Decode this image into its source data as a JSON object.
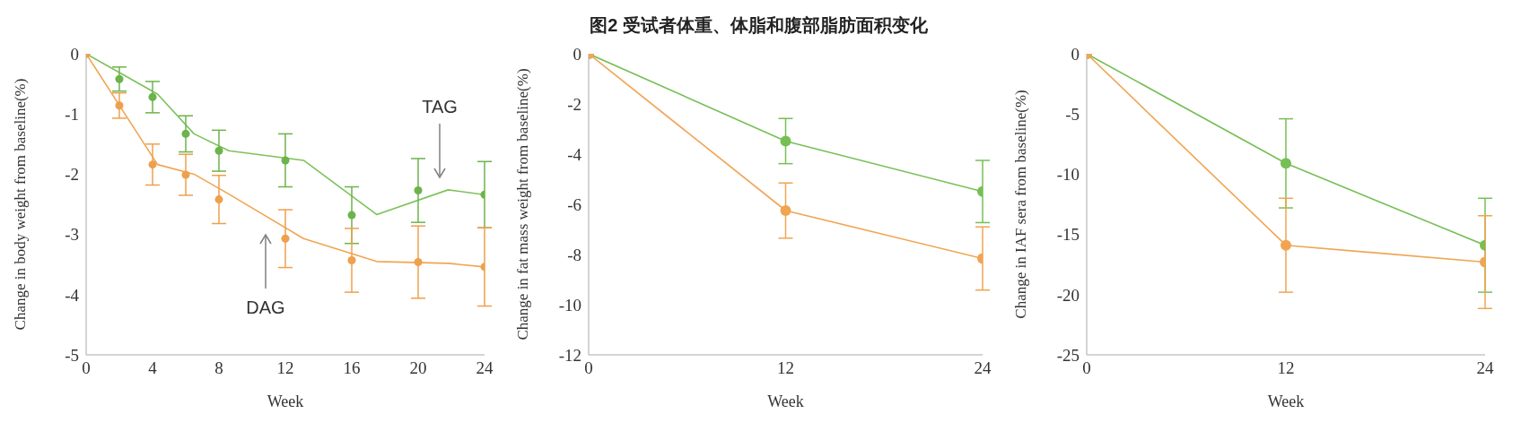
{
  "chart_data": [
    {
      "type": "line",
      "xlabel": "Week",
      "ylabel": "Change in body weight from baseline(%)",
      "xlim": [
        0,
        24
      ],
      "xticks": [
        0,
        4,
        8,
        12,
        16,
        20,
        24
      ],
      "ylim": [
        -5,
        0
      ],
      "yticks": [
        0,
        -1,
        -2,
        -3,
        -4,
        -5
      ],
      "grid": false,
      "series": [
        {
          "type": "line",
          "marker": "none",
          "color": "#7cc25a",
          "x": [
            0,
            4.3,
            6.5,
            8.6,
            13.1,
            17.5,
            21.8,
            24
          ],
          "values": [
            0,
            -0.67,
            -1.33,
            -1.61,
            -1.77,
            -2.67,
            -2.26,
            -2.34
          ]
        },
        {
          "type": "line",
          "marker": "none",
          "color": "#f0a552",
          "x": [
            0,
            4.3,
            6.5,
            8.6,
            13.1,
            17.5,
            21.8,
            24
          ],
          "values": [
            0,
            -1.84,
            -2.0,
            -2.33,
            -3.07,
            -3.45,
            -3.48,
            -3.54
          ]
        },
        {
          "type": "scatter",
          "marker": "circle",
          "color": "#6cb34c",
          "x": [
            0,
            2,
            4,
            6,
            8,
            12,
            16,
            20,
            24
          ],
          "values": [
            0,
            -0.42,
            -0.72,
            -1.33,
            -1.61,
            -1.77,
            -2.68,
            -2.27,
            -2.34
          ],
          "errors": [
            null,
            0.2,
            0.26,
            0.3,
            0.34,
            0.44,
            0.47,
            0.53,
            0.55
          ]
        },
        {
          "type": "scatter",
          "marker": "circle",
          "color": "#eea04c",
          "x": [
            0,
            2,
            4,
            6,
            8,
            12,
            16,
            20,
            24
          ],
          "values": [
            0,
            -0.86,
            -1.84,
            -2.01,
            -2.42,
            -3.07,
            -3.43,
            -3.46,
            -3.54
          ],
          "errors": [
            null,
            0.21,
            0.34,
            0.34,
            0.4,
            0.48,
            0.53,
            0.6,
            0.65
          ]
        }
      ],
      "annotations": [
        "TAG",
        "DAG"
      ]
    },
    {
      "type": "line",
      "title": "图2 受试者体重、体脂和腹部脂肪面积变化",
      "marker": "circle",
      "xlabel": "Week",
      "ylabel": "Change in fat mass weight from baseline(%)",
      "x": [
        0,
        12,
        24
      ],
      "xlim": [
        0,
        24
      ],
      "xticks": [
        0,
        12,
        24
      ],
      "ylim": [
        -12,
        0
      ],
      "yticks": [
        0,
        -2,
        -4,
        -6,
        -8,
        -10,
        -12
      ],
      "grid": false,
      "series": [
        {
          "color": "#76bf55",
          "values": [
            0,
            -3.48,
            -5.49
          ],
          "errors": [
            null,
            0.9,
            1.24
          ]
        },
        {
          "color": "#f0a552",
          "values": [
            0,
            -6.25,
            -8.16
          ],
          "errors": [
            null,
            1.1,
            1.26
          ]
        }
      ]
    },
    {
      "type": "line",
      "marker": "circle",
      "xlabel": "Week",
      "ylabel": "Change in IAF sera from baseline(%)",
      "x": [
        0,
        12,
        24
      ],
      "xlim": [
        0,
        24
      ],
      "xticks": [
        0,
        12,
        24
      ],
      "ylim": [
        -25,
        0
      ],
      "yticks": [
        0,
        -5,
        -10,
        -15,
        -20,
        -25
      ],
      "grid": false,
      "series": [
        {
          "color": "#76bf55",
          "values": [
            0,
            -9.1,
            -15.9
          ],
          "errors": [
            null,
            3.7,
            3.9
          ]
        },
        {
          "color": "#f0a552",
          "values": [
            0,
            -15.9,
            -17.3
          ],
          "errors": [
            null,
            3.9,
            3.85
          ]
        }
      ]
    }
  ]
}
